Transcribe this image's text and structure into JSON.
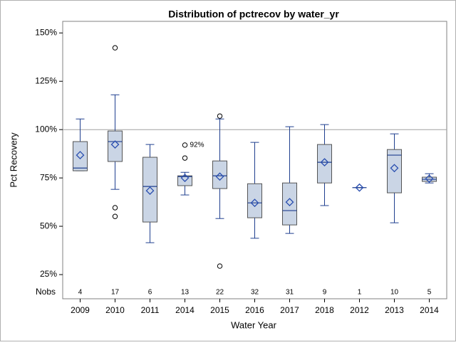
{
  "chart_data": {
    "type": "box",
    "title": "Distribution of pctrecov by water_yr",
    "x_label": "Water Year",
    "y_label": "Pct Recovery",
    "categories": [
      "2009",
      "2010",
      "2011",
      "2014",
      "2015",
      "2016",
      "2017",
      "2018",
      "2012",
      "2013",
      "2014"
    ],
    "boxes": [
      {
        "min": 78.7,
        "q1": 78.7,
        "median": 80.1,
        "q3": 93.8,
        "max": 105.5,
        "mean": 86.8,
        "outliers": []
      },
      {
        "min": 69.1,
        "q1": 83.5,
        "median": 93.8,
        "q3": 99.3,
        "max": 118,
        "mean": 92.3,
        "outliers": [
          142.3,
          59.6,
          55.1
        ]
      },
      {
        "min": 41.5,
        "q1": 52.2,
        "median": 70.6,
        "q3": 85.7,
        "max": 92.3,
        "mean": 68.4,
        "outliers": []
      },
      {
        "min": 66.2,
        "q1": 71,
        "median": 75.7,
        "q3": 76.1,
        "max": 77.9,
        "mean": 75,
        "outliers": [
          92,
          85.3
        ],
        "outlier_value_labels": [
          "92%"
        ]
      },
      {
        "min": 54,
        "q1": 69.5,
        "median": 76.1,
        "q3": 83.8,
        "max": 105.5,
        "mean": 75.7,
        "outliers": [
          107,
          29.4
        ]
      },
      {
        "min": 43.8,
        "q1": 54.4,
        "median": 62.1,
        "q3": 72,
        "max": 93.4,
        "mean": 62.1,
        "outliers": []
      },
      {
        "min": 46.3,
        "q1": 50.7,
        "median": 58.1,
        "q3": 72.4,
        "max": 101.5,
        "mean": 62.5,
        "outliers": []
      },
      {
        "min": 60.7,
        "q1": 72.4,
        "median": 83.1,
        "q3": 92.3,
        "max": 102.6,
        "mean": 83.1,
        "outliers": []
      },
      {
        "min": 70,
        "q1": 70,
        "median": 70,
        "q3": 70,
        "max": 70,
        "mean": 70,
        "outliers": []
      },
      {
        "min": 51.8,
        "q1": 67.3,
        "median": 86.8,
        "q3": 89.7,
        "max": 97.8,
        "mean": 80.1,
        "outliers": []
      },
      {
        "min": 72.4,
        "q1": 73.2,
        "median": 74.3,
        "q3": 75.4,
        "max": 77.2,
        "mean": 74.6,
        "outliers": []
      }
    ],
    "nobs_label": "Nobs",
    "nobs": [
      4,
      17,
      6,
      13,
      22,
      32,
      31,
      9,
      1,
      10,
      5
    ],
    "reference_line": 100,
    "box_color": "#cad5e5",
    "line_color": "#1f3f8f",
    "ylim": [
      12.5,
      156
    ],
    "yticks": [
      {
        "value": 25,
        "label": "25%"
      },
      {
        "value": 50,
        "label": "50%"
      },
      {
        "value": 75,
        "label": "75%"
      },
      {
        "value": 100,
        "label": "100%"
      },
      {
        "value": 125,
        "label": "125%"
      },
      {
        "value": 150,
        "label": "150%"
      }
    ]
  }
}
